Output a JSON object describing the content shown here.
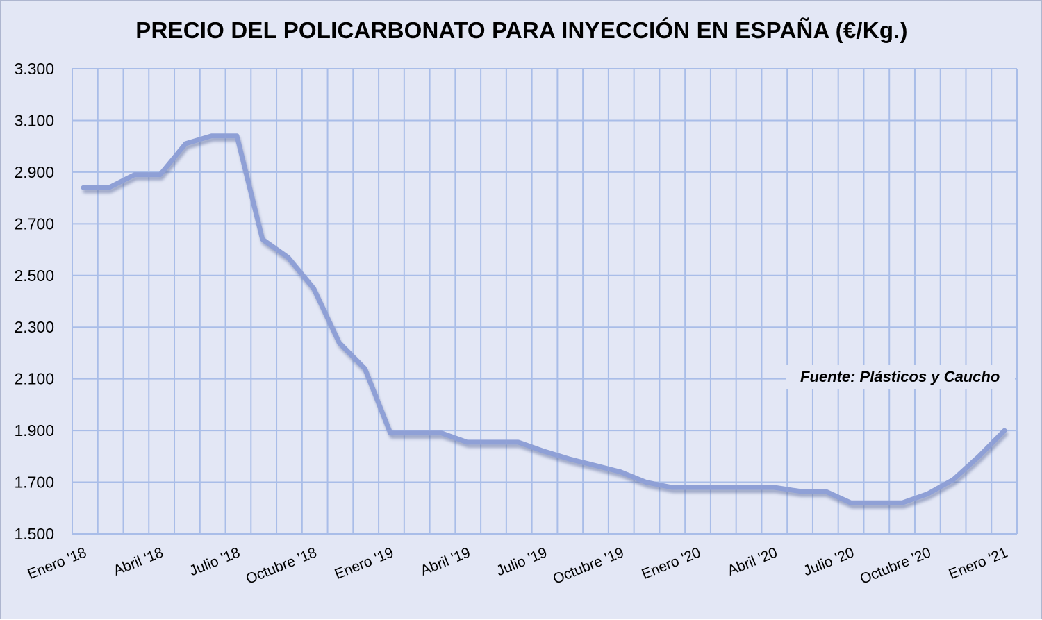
{
  "chart_data": {
    "type": "line",
    "title": "PRECIO DEL POLICARBONATO  PARA INYECCIÓN  EN ESPAÑA (€/Kg.)",
    "xlabel": "",
    "ylabel": "",
    "ylim": [
      1500,
      3300
    ],
    "y_ticks": [
      "3.300",
      "3.100",
      "2.900",
      "2.700",
      "2.500",
      "2.300",
      "2.100",
      "1.900",
      "1.700",
      "1.500"
    ],
    "y_tick_values": [
      3300,
      3100,
      2900,
      2700,
      2500,
      2300,
      2100,
      1900,
      1700,
      1500
    ],
    "x_tick_labels": [
      "Enero '18",
      "Abril '18",
      "Julio '18",
      "Octubre '18",
      "Enero '19",
      "Abril '19",
      "Julio '19",
      "Octubre '19",
      "Enero '20",
      "Abril '20",
      "Julio '20",
      "Octubre '20",
      "Enero '21"
    ],
    "x_tick_index": [
      0,
      3,
      6,
      9,
      12,
      15,
      18,
      21,
      24,
      27,
      30,
      33,
      36
    ],
    "categories": [
      "Ene 18",
      "Feb 18",
      "Mar 18",
      "Abr 18",
      "May 18",
      "Jun 18",
      "Jul 18",
      "Ago 18",
      "Sep 18",
      "Oct 18",
      "Nov 18",
      "Dic 18",
      "Ene 19",
      "Feb 19",
      "Mar 19",
      "Abr 19",
      "May 19",
      "Jun 19",
      "Jul 19",
      "Ago 19",
      "Sep 19",
      "Oct 19",
      "Nov 19",
      "Dic 19",
      "Ene 20",
      "Feb 20",
      "Mar 20",
      "Abr 20",
      "May 20",
      "Jun 20",
      "Jul 20",
      "Ago 20",
      "Sep 20",
      "Oct 20",
      "Nov 20",
      "Dic 20",
      "Ene 21"
    ],
    "values": [
      2840,
      2840,
      2890,
      2890,
      3010,
      3040,
      3040,
      2640,
      2570,
      2450,
      2240,
      2140,
      1890,
      1890,
      1890,
      1855,
      1855,
      1855,
      1820,
      1790,
      1765,
      1740,
      1700,
      1680,
      1680,
      1680,
      1680,
      1680,
      1665,
      1665,
      1620,
      1620,
      1620,
      1655,
      1710,
      1800,
      1900
    ],
    "grid": true,
    "legend": "none",
    "line_color": "#8fa0d6",
    "shadow_color": "#5f6d9c",
    "plot_background": "#e3e7f5",
    "grid_color": "#a9bde8"
  },
  "source_note": "Fuente: Plásticos  y Caucho"
}
